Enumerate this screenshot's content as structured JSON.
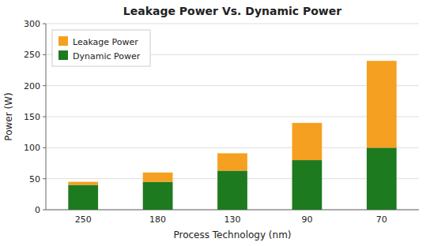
{
  "chart_data": {
    "type": "bar",
    "stacked": true,
    "title": "Leakage Power Vs. Dynamic Power",
    "xlabel": "Process Technology (nm)",
    "ylabel": "Power (W)",
    "categories": [
      "250",
      "180",
      "130",
      "90",
      "70"
    ],
    "series": [
      {
        "name": "Dynamic Power",
        "color": "#1e7a1e",
        "values": [
          40,
          45,
          63,
          80,
          100
        ]
      },
      {
        "name": "Leakage Power",
        "color": "#f5a020",
        "values": [
          5,
          15,
          28,
          60,
          140
        ]
      }
    ],
    "ylim": [
      0,
      300
    ],
    "yticks": [
      0,
      50,
      100,
      150,
      200,
      250,
      300
    ],
    "grid": true,
    "legend": "upper left"
  }
}
